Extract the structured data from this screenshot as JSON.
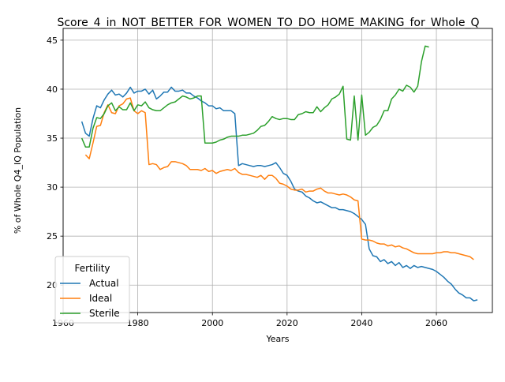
{
  "chart_data": {
    "type": "line",
    "title": "Score_4_in_NOT_BETTER_FOR_WOMEN_TO_DO_HOME_MAKING_for_Whole_Q",
    "xlabel": "Years",
    "ylabel": "% of Whole Q4_IQ Population",
    "xlim": [
      1960,
      2075
    ],
    "ylim": [
      17.2,
      46.2
    ],
    "xticks": [
      1960,
      1980,
      2000,
      2020,
      2040,
      2060
    ],
    "yticks": [
      20,
      25,
      30,
      35,
      40,
      45
    ],
    "grid": true,
    "legend": {
      "title": "Fertility",
      "placement": "lower-left"
    },
    "series": [
      {
        "name": "Actual",
        "color": "#1f77b4",
        "points": [
          [
            1965,
            36.7
          ],
          [
            1966,
            35.5
          ],
          [
            1967,
            35.2
          ],
          [
            1968,
            37.0
          ],
          [
            1969,
            38.3
          ],
          [
            1970,
            38.1
          ],
          [
            1971,
            38.9
          ],
          [
            1972,
            39.5
          ],
          [
            1973,
            39.9
          ],
          [
            1974,
            39.4
          ],
          [
            1975,
            39.5
          ],
          [
            1976,
            39.2
          ],
          [
            1977,
            39.6
          ],
          [
            1978,
            40.2
          ],
          [
            1979,
            39.6
          ],
          [
            1980,
            39.8
          ],
          [
            1981,
            39.8
          ],
          [
            1982,
            40.0
          ],
          [
            1983,
            39.5
          ],
          [
            1984,
            39.9
          ],
          [
            1985,
            39.0
          ],
          [
            1986,
            39.3
          ],
          [
            1987,
            39.7
          ],
          [
            1988,
            39.7
          ],
          [
            1989,
            40.2
          ],
          [
            1990,
            39.8
          ],
          [
            1991,
            39.8
          ],
          [
            1992,
            39.9
          ],
          [
            1993,
            39.6
          ],
          [
            1994,
            39.6
          ],
          [
            1995,
            39.3
          ],
          [
            1996,
            39.1
          ],
          [
            1997,
            38.8
          ],
          [
            1998,
            38.6
          ],
          [
            1999,
            38.3
          ],
          [
            2000,
            38.3
          ],
          [
            2001,
            38.0
          ],
          [
            2002,
            38.1
          ],
          [
            2003,
            37.8
          ],
          [
            2004,
            37.8
          ],
          [
            2005,
            37.8
          ],
          [
            2006,
            37.5
          ],
          [
            2007,
            32.2
          ],
          [
            2008,
            32.4
          ],
          [
            2009,
            32.3
          ],
          [
            2010,
            32.2
          ],
          [
            2011,
            32.1
          ],
          [
            2012,
            32.2
          ],
          [
            2013,
            32.2
          ],
          [
            2014,
            32.1
          ],
          [
            2015,
            32.2
          ],
          [
            2016,
            32.3
          ],
          [
            2017,
            32.5
          ],
          [
            2018,
            32.0
          ],
          [
            2019,
            31.4
          ],
          [
            2020,
            31.2
          ],
          [
            2021,
            30.6
          ],
          [
            2022,
            29.8
          ],
          [
            2023,
            29.6
          ],
          [
            2024,
            29.5
          ],
          [
            2025,
            29.1
          ],
          [
            2026,
            28.9
          ],
          [
            2027,
            28.6
          ],
          [
            2028,
            28.4
          ],
          [
            2029,
            28.5
          ],
          [
            2030,
            28.3
          ],
          [
            2031,
            28.1
          ],
          [
            2032,
            27.9
          ],
          [
            2033,
            27.9
          ],
          [
            2034,
            27.7
          ],
          [
            2035,
            27.7
          ],
          [
            2036,
            27.6
          ],
          [
            2037,
            27.5
          ],
          [
            2038,
            27.3
          ],
          [
            2039,
            27.0
          ],
          [
            2040,
            26.7
          ],
          [
            2041,
            26.2
          ],
          [
            2042,
            23.7
          ],
          [
            2043,
            23.0
          ],
          [
            2044,
            22.9
          ],
          [
            2045,
            22.4
          ],
          [
            2046,
            22.6
          ],
          [
            2047,
            22.2
          ],
          [
            2048,
            22.4
          ],
          [
            2049,
            22.0
          ],
          [
            2050,
            22.3
          ],
          [
            2051,
            21.8
          ],
          [
            2052,
            22.0
          ],
          [
            2053,
            21.7
          ],
          [
            2054,
            22.0
          ],
          [
            2055,
            21.8
          ],
          [
            2056,
            21.9
          ],
          [
            2057,
            21.8
          ],
          [
            2058,
            21.7
          ],
          [
            2059,
            21.6
          ],
          [
            2060,
            21.4
          ],
          [
            2061,
            21.1
          ],
          [
            2062,
            20.8
          ],
          [
            2063,
            20.4
          ],
          [
            2064,
            20.1
          ],
          [
            2065,
            19.6
          ],
          [
            2066,
            19.2
          ],
          [
            2067,
            19.0
          ],
          [
            2068,
            18.7
          ],
          [
            2069,
            18.7
          ],
          [
            2070,
            18.4
          ],
          [
            2071,
            18.5
          ]
        ]
      },
      {
        "name": "Ideal",
        "color": "#ff7f0e",
        "points": [
          [
            1966,
            33.3
          ],
          [
            1967,
            32.9
          ],
          [
            1968,
            34.5
          ],
          [
            1969,
            36.2
          ],
          [
            1970,
            36.3
          ],
          [
            1971,
            37.6
          ],
          [
            1972,
            38.4
          ],
          [
            1973,
            37.6
          ],
          [
            1974,
            37.5
          ],
          [
            1975,
            38.3
          ],
          [
            1976,
            38.5
          ],
          [
            1977,
            39.0
          ],
          [
            1978,
            39.1
          ],
          [
            1979,
            37.8
          ],
          [
            1980,
            37.5
          ],
          [
            1981,
            37.8
          ],
          [
            1982,
            37.6
          ],
          [
            1983,
            32.3
          ],
          [
            1984,
            32.4
          ],
          [
            1985,
            32.3
          ],
          [
            1986,
            31.8
          ],
          [
            1987,
            32.0
          ],
          [
            1988,
            32.1
          ],
          [
            1989,
            32.6
          ],
          [
            1990,
            32.6
          ],
          [
            1991,
            32.5
          ],
          [
            1992,
            32.4
          ],
          [
            1993,
            32.2
          ],
          [
            1994,
            31.8
          ],
          [
            1995,
            31.8
          ],
          [
            1996,
            31.8
          ],
          [
            1997,
            31.7
          ],
          [
            1998,
            31.9
          ],
          [
            1999,
            31.6
          ],
          [
            2000,
            31.7
          ],
          [
            2001,
            31.4
          ],
          [
            2002,
            31.6
          ],
          [
            2003,
            31.7
          ],
          [
            2004,
            31.8
          ],
          [
            2005,
            31.7
          ],
          [
            2006,
            31.9
          ],
          [
            2007,
            31.5
          ],
          [
            2008,
            31.3
          ],
          [
            2009,
            31.3
          ],
          [
            2010,
            31.2
          ],
          [
            2011,
            31.1
          ],
          [
            2012,
            31.0
          ],
          [
            2013,
            31.2
          ],
          [
            2014,
            30.8
          ],
          [
            2015,
            31.2
          ],
          [
            2016,
            31.2
          ],
          [
            2017,
            30.9
          ],
          [
            2018,
            30.4
          ],
          [
            2019,
            30.3
          ],
          [
            2020,
            30.1
          ],
          [
            2021,
            29.8
          ],
          [
            2022,
            29.7
          ],
          [
            2023,
            29.7
          ],
          [
            2024,
            29.8
          ],
          [
            2025,
            29.5
          ],
          [
            2026,
            29.6
          ],
          [
            2027,
            29.6
          ],
          [
            2028,
            29.8
          ],
          [
            2029,
            29.9
          ],
          [
            2030,
            29.6
          ],
          [
            2031,
            29.4
          ],
          [
            2032,
            29.4
          ],
          [
            2033,
            29.3
          ],
          [
            2034,
            29.2
          ],
          [
            2035,
            29.3
          ],
          [
            2036,
            29.2
          ],
          [
            2037,
            29.0
          ],
          [
            2038,
            28.7
          ],
          [
            2039,
            28.6
          ],
          [
            2040,
            24.7
          ],
          [
            2041,
            24.6
          ],
          [
            2042,
            24.6
          ],
          [
            2043,
            24.5
          ],
          [
            2044,
            24.3
          ],
          [
            2045,
            24.2
          ],
          [
            2046,
            24.2
          ],
          [
            2047,
            24.0
          ],
          [
            2048,
            24.1
          ],
          [
            2049,
            23.9
          ],
          [
            2050,
            24.0
          ],
          [
            2051,
            23.8
          ],
          [
            2052,
            23.7
          ],
          [
            2053,
            23.5
          ],
          [
            2054,
            23.3
          ],
          [
            2055,
            23.2
          ],
          [
            2056,
            23.2
          ],
          [
            2057,
            23.2
          ],
          [
            2058,
            23.2
          ],
          [
            2059,
            23.2
          ],
          [
            2060,
            23.3
          ],
          [
            2061,
            23.3
          ],
          [
            2062,
            23.4
          ],
          [
            2063,
            23.4
          ],
          [
            2064,
            23.3
          ],
          [
            2065,
            23.3
          ],
          [
            2066,
            23.2
          ],
          [
            2067,
            23.1
          ],
          [
            2068,
            23.0
          ],
          [
            2069,
            22.9
          ],
          [
            2070,
            22.6
          ]
        ]
      },
      {
        "name": "Sterile",
        "color": "#2ca02c",
        "points": [
          [
            1965,
            35.0
          ],
          [
            1966,
            34.1
          ],
          [
            1967,
            34.1
          ],
          [
            1968,
            36.0
          ],
          [
            1969,
            37.1
          ],
          [
            1970,
            37.0
          ],
          [
            1971,
            37.5
          ],
          [
            1972,
            38.3
          ],
          [
            1973,
            38.6
          ],
          [
            1974,
            37.8
          ],
          [
            1975,
            38.2
          ],
          [
            1976,
            37.9
          ],
          [
            1977,
            37.9
          ],
          [
            1978,
            38.6
          ],
          [
            1979,
            37.8
          ],
          [
            1980,
            38.4
          ],
          [
            1981,
            38.3
          ],
          [
            1982,
            38.7
          ],
          [
            1983,
            38.1
          ],
          [
            1984,
            37.9
          ],
          [
            1985,
            37.8
          ],
          [
            1986,
            37.8
          ],
          [
            1987,
            38.1
          ],
          [
            1988,
            38.4
          ],
          [
            1989,
            38.6
          ],
          [
            1990,
            38.7
          ],
          [
            1991,
            39.0
          ],
          [
            1992,
            39.3
          ],
          [
            1993,
            39.2
          ],
          [
            1994,
            39.0
          ],
          [
            1995,
            39.1
          ],
          [
            1996,
            39.3
          ],
          [
            1997,
            39.3
          ],
          [
            1998,
            34.5
          ],
          [
            1999,
            34.5
          ],
          [
            2000,
            34.5
          ],
          [
            2001,
            34.6
          ],
          [
            2002,
            34.8
          ],
          [
            2003,
            34.9
          ],
          [
            2004,
            35.1
          ],
          [
            2005,
            35.2
          ],
          [
            2006,
            35.2
          ],
          [
            2007,
            35.2
          ],
          [
            2008,
            35.3
          ],
          [
            2009,
            35.3
          ],
          [
            2010,
            35.4
          ],
          [
            2011,
            35.5
          ],
          [
            2012,
            35.8
          ],
          [
            2013,
            36.2
          ],
          [
            2014,
            36.3
          ],
          [
            2015,
            36.7
          ],
          [
            2016,
            37.2
          ],
          [
            2017,
            37.0
          ],
          [
            2018,
            36.9
          ],
          [
            2019,
            37.0
          ],
          [
            2020,
            37.0
          ],
          [
            2021,
            36.9
          ],
          [
            2022,
            36.9
          ],
          [
            2023,
            37.4
          ],
          [
            2024,
            37.5
          ],
          [
            2025,
            37.7
          ],
          [
            2026,
            37.6
          ],
          [
            2027,
            37.6
          ],
          [
            2028,
            38.2
          ],
          [
            2029,
            37.7
          ],
          [
            2030,
            38.1
          ],
          [
            2031,
            38.4
          ],
          [
            2032,
            39.0
          ],
          [
            2033,
            39.2
          ],
          [
            2034,
            39.5
          ],
          [
            2035,
            40.3
          ],
          [
            2036,
            34.9
          ],
          [
            2037,
            34.8
          ],
          [
            2038,
            39.3
          ],
          [
            2039,
            34.8
          ],
          [
            2040,
            39.4
          ],
          [
            2041,
            35.3
          ],
          [
            2042,
            35.6
          ],
          [
            2043,
            36.1
          ],
          [
            2044,
            36.3
          ],
          [
            2045,
            36.9
          ],
          [
            2046,
            37.8
          ],
          [
            2047,
            37.8
          ],
          [
            2048,
            39.0
          ],
          [
            2049,
            39.4
          ],
          [
            2050,
            40.0
          ],
          [
            2051,
            39.8
          ],
          [
            2052,
            40.4
          ],
          [
            2053,
            40.2
          ],
          [
            2054,
            39.7
          ],
          [
            2055,
            40.3
          ],
          [
            2056,
            42.8
          ],
          [
            2057,
            44.4
          ],
          [
            2058,
            44.3
          ]
        ]
      }
    ]
  }
}
